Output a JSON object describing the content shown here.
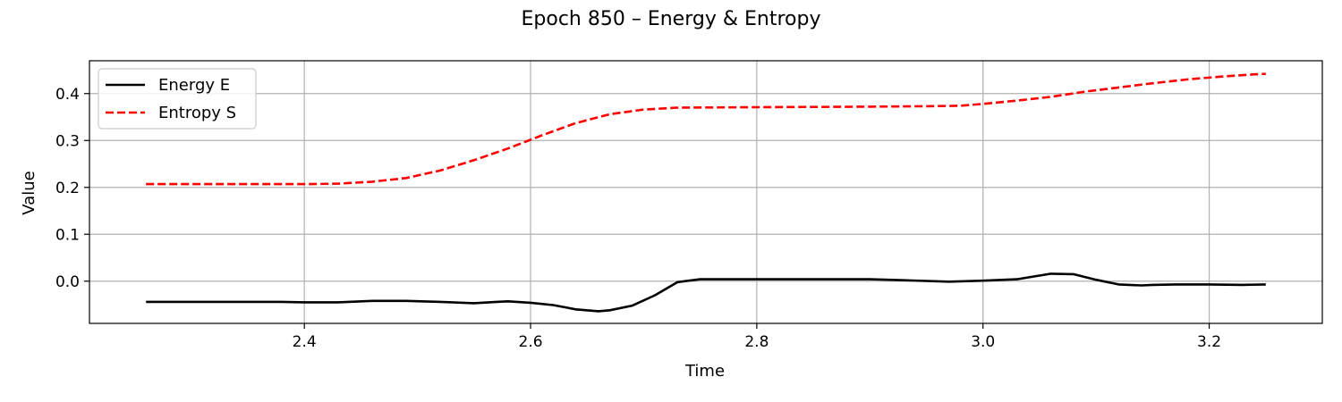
{
  "chart_data": {
    "type": "line",
    "title": "Epoch 850 – Energy & Entropy",
    "xlabel": "Time",
    "ylabel": "Value",
    "xlim": [
      2.21,
      3.3
    ],
    "ylim": [
      -0.09,
      0.47
    ],
    "xticks": [
      "2.4",
      "2.6",
      "2.8",
      "3.0",
      "3.2"
    ],
    "yticks": [
      "0.0",
      "0.1",
      "0.2",
      "0.3",
      "0.4"
    ],
    "grid": true,
    "legend_position": "top-left",
    "series": [
      {
        "name": "Energy E",
        "color": "#000000",
        "style": "solid",
        "points": [
          [
            2.26,
            -0.044
          ],
          [
            2.3,
            -0.044
          ],
          [
            2.35,
            -0.044
          ],
          [
            2.38,
            -0.044
          ],
          [
            2.4,
            -0.045
          ],
          [
            2.43,
            -0.045
          ],
          [
            2.46,
            -0.042
          ],
          [
            2.49,
            -0.042
          ],
          [
            2.52,
            -0.044
          ],
          [
            2.55,
            -0.047
          ],
          [
            2.57,
            -0.044
          ],
          [
            2.58,
            -0.043
          ],
          [
            2.6,
            -0.046
          ],
          [
            2.62,
            -0.051
          ],
          [
            2.64,
            -0.06
          ],
          [
            2.66,
            -0.064
          ],
          [
            2.67,
            -0.062
          ],
          [
            2.69,
            -0.052
          ],
          [
            2.71,
            -0.03
          ],
          [
            2.73,
            -0.002
          ],
          [
            2.75,
            0.004
          ],
          [
            2.8,
            0.004
          ],
          [
            2.85,
            0.004
          ],
          [
            2.9,
            0.004
          ],
          [
            2.93,
            0.002
          ],
          [
            2.97,
            -0.001
          ],
          [
            3.0,
            0.001
          ],
          [
            3.03,
            0.004
          ],
          [
            3.06,
            0.016
          ],
          [
            3.08,
            0.015
          ],
          [
            3.1,
            0.003
          ],
          [
            3.12,
            -0.007
          ],
          [
            3.14,
            -0.009
          ],
          [
            3.15,
            -0.008
          ],
          [
            3.17,
            -0.007
          ],
          [
            3.2,
            -0.007
          ],
          [
            3.23,
            -0.008
          ],
          [
            3.25,
            -0.007
          ]
        ]
      },
      {
        "name": "Entropy S",
        "color": "#ff0000",
        "style": "dashed",
        "points": [
          [
            2.26,
            0.207
          ],
          [
            2.3,
            0.207
          ],
          [
            2.35,
            0.207
          ],
          [
            2.4,
            0.207
          ],
          [
            2.43,
            0.208
          ],
          [
            2.46,
            0.212
          ],
          [
            2.49,
            0.22
          ],
          [
            2.52,
            0.236
          ],
          [
            2.55,
            0.258
          ],
          [
            2.58,
            0.283
          ],
          [
            2.61,
            0.311
          ],
          [
            2.64,
            0.337
          ],
          [
            2.67,
            0.356
          ],
          [
            2.7,
            0.366
          ],
          [
            2.73,
            0.37
          ],
          [
            2.8,
            0.371
          ],
          [
            2.9,
            0.372
          ],
          [
            2.95,
            0.373
          ],
          [
            2.98,
            0.374
          ],
          [
            3.0,
            0.378
          ],
          [
            3.03,
            0.385
          ],
          [
            3.06,
            0.393
          ],
          [
            3.09,
            0.404
          ],
          [
            3.12,
            0.413
          ],
          [
            3.15,
            0.422
          ],
          [
            3.18,
            0.43
          ],
          [
            3.21,
            0.436
          ],
          [
            3.24,
            0.441
          ],
          [
            3.25,
            0.442
          ]
        ]
      }
    ]
  }
}
